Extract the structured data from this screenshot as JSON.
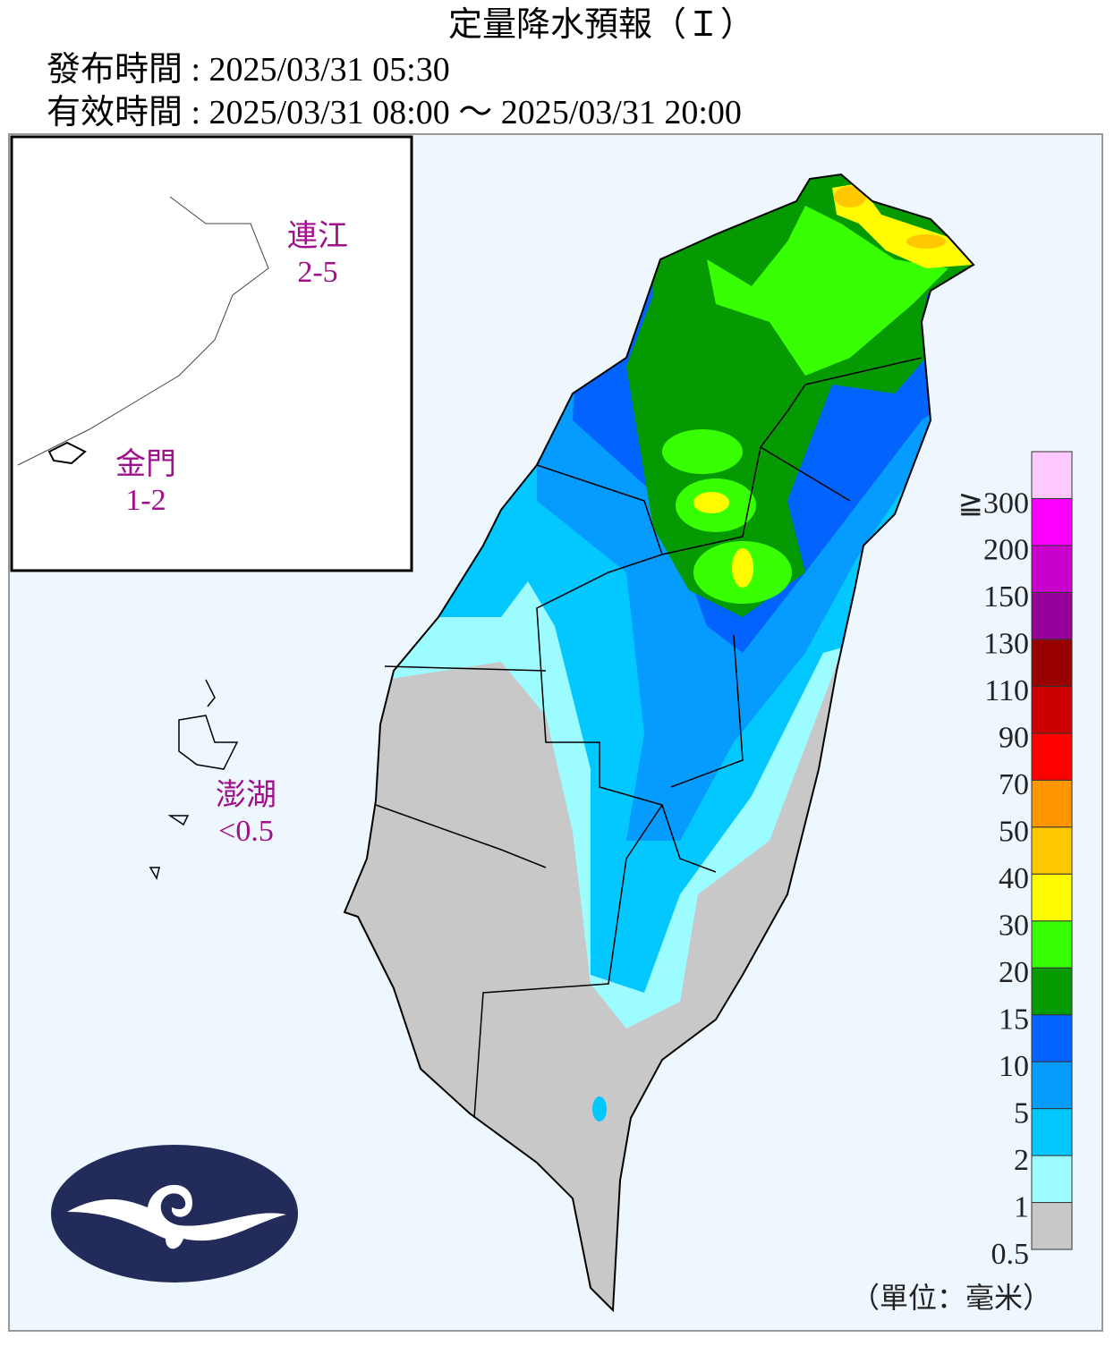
{
  "header": {
    "title": "定量降水預報（Ｉ）",
    "issued": "發布時間 : 2025/03/31 05:30",
    "valid": "有效時間 : 2025/03/31 08:00 ～ 2025/03/31 20:00"
  },
  "regions": [
    {
      "name": "連江",
      "value": "2-5"
    },
    {
      "name": "金門",
      "value": "1-2"
    },
    {
      "name": "澎湖",
      "value": "<0.5"
    }
  ],
  "legend": {
    "labels": [
      "0.5",
      "1",
      "2",
      "5",
      "10",
      "15",
      "20",
      "30",
      "40",
      "50",
      "70",
      "90",
      "110",
      "130",
      "150",
      "200",
      "≧300"
    ],
    "colors": [
      "#c8c8c8",
      "#9cfcff",
      "#03c8ff",
      "#059bff",
      "#0363ff",
      "#059902",
      "#39ff03",
      "#fffb03",
      "#ffc800",
      "#ff9500",
      "#ff0000",
      "#cc0000",
      "#990000",
      "#960099",
      "#c900cc",
      "#fb00ff",
      "#fdc9ff"
    ],
    "unit": "（單位：毫米）"
  }
}
